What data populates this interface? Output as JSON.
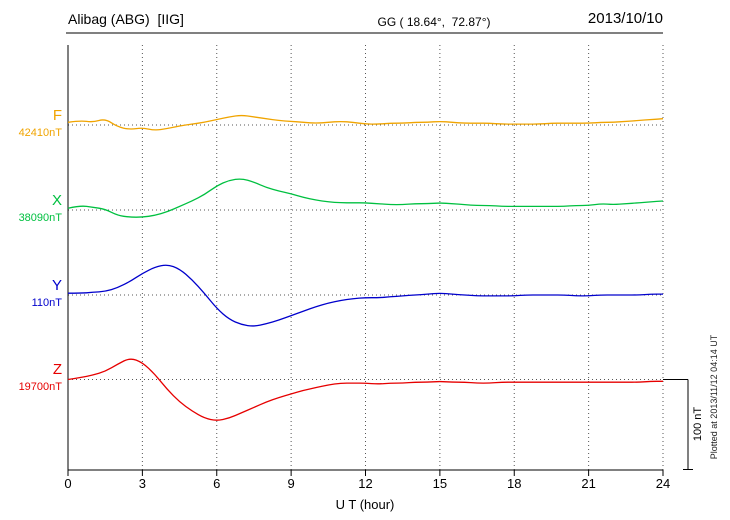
{
  "header": {
    "station": "Alibag (ABG)  [IIG]",
    "coords": "GG ( 18.64°,  72.87°)",
    "date": "2013/10/10"
  },
  "annotations": {
    "scale_bar_label": "100 nT",
    "plotted_at": "Plotted at 2013/11/12 04:14 UT"
  },
  "chart_data": {
    "type": "line",
    "title": "Alibag (ABG) [IIG] magnetogram",
    "xlabel": "U T (hour)",
    "x_range": [
      0,
      24
    ],
    "x_ticks": [
      0,
      3,
      6,
      9,
      12,
      15,
      18,
      21,
      24
    ],
    "x_step_hours": 0.5,
    "grid": "dotted-vertical-every-3h",
    "legend_position": "left-margin",
    "scale_bar_nT": 100,
    "units": "nT offset from component baseline",
    "series": [
      {
        "name": "F",
        "baseline_label": "42410nT",
        "baseline_nT": 42410,
        "color": "#f0a400",
        "values": [
          3,
          5,
          3,
          7,
          -2,
          -5,
          -3,
          -6,
          -4,
          -1,
          1,
          3,
          6,
          9,
          11,
          9,
          7,
          5,
          4,
          3,
          2,
          3,
          4,
          3,
          1,
          1,
          2,
          2,
          3,
          3,
          4,
          3,
          2,
          2,
          2,
          1,
          1,
          1,
          1,
          2,
          2,
          2,
          2,
          3,
          3,
          4,
          5,
          6,
          7
        ]
      },
      {
        "name": "X",
        "baseline_label": "38090nT",
        "baseline_nT": 38090,
        "color": "#00c040",
        "values": [
          2,
          5,
          3,
          1,
          -6,
          -8,
          -8,
          -6,
          -2,
          4,
          10,
          17,
          27,
          33,
          35,
          31,
          25,
          21,
          18,
          14,
          11,
          9,
          8,
          8,
          8,
          7,
          6,
          6,
          7,
          7,
          8,
          7,
          6,
          5,
          5,
          4,
          4,
          4,
          4,
          4,
          4,
          5,
          5,
          7,
          6,
          7,
          8,
          9,
          10
        ]
      },
      {
        "name": "Y",
        "baseline_label": "110nT",
        "baseline_nT": 110,
        "color": "#0000cc",
        "values": [
          2,
          2,
          3,
          4,
          8,
          15,
          24,
          31,
          34,
          29,
          17,
          2,
          -15,
          -27,
          -33,
          -35,
          -32,
          -28,
          -23,
          -18,
          -13,
          -9,
          -6,
          -4,
          -3,
          -3,
          -2,
          -1,
          0,
          1,
          2,
          1,
          0,
          -1,
          -1,
          -1,
          -1,
          0,
          0,
          0,
          0,
          -1,
          -1,
          0,
          0,
          0,
          0,
          1,
          1
        ]
      },
      {
        "name": "Z",
        "baseline_label": "19700nT",
        "baseline_nT": 19700,
        "color": "#e60000",
        "values": [
          0,
          2,
          5,
          9,
          17,
          24,
          19,
          6,
          -11,
          -25,
          -35,
          -43,
          -46,
          -43,
          -37,
          -31,
          -25,
          -20,
          -16,
          -12,
          -9,
          -6,
          -4,
          -4,
          -4,
          -5,
          -4,
          -4,
          -3,
          -3,
          -2,
          -3,
          -3,
          -4,
          -4,
          -3,
          -3,
          -3,
          -3,
          -3,
          -3,
          -3,
          -3,
          -3,
          -3,
          -3,
          -3,
          -2,
          -2
        ]
      }
    ]
  }
}
